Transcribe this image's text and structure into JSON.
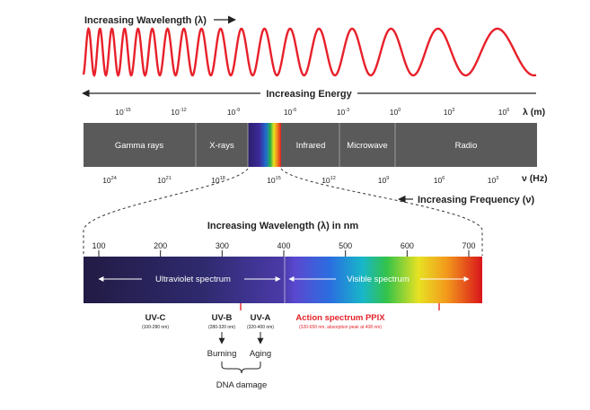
{
  "top_wavelength_label": "Increasing Wavelength (λ)",
  "energy_label": "Increasing Energy",
  "wavelength_unit": "λ (m)",
  "wavelength_ticks": [
    {
      "base": "10",
      "exp": "-15"
    },
    {
      "base": "10",
      "exp": "-12"
    },
    {
      "base": "10",
      "exp": "-9"
    },
    {
      "base": "10",
      "exp": "-6"
    },
    {
      "base": "10",
      "exp": "-3"
    },
    {
      "base": "10",
      "exp": "0"
    },
    {
      "base": "10",
      "exp": "3"
    },
    {
      "base": "10",
      "exp": "6"
    }
  ],
  "bands": [
    {
      "label": "Gamma rays"
    },
    {
      "label": "X-rays"
    },
    {
      "label": "Infrared"
    },
    {
      "label": "Microwave"
    },
    {
      "label": "Radio"
    }
  ],
  "frequency_ticks": [
    {
      "base": "10",
      "exp": "24"
    },
    {
      "base": "10",
      "exp": "21"
    },
    {
      "base": "10",
      "exp": "18"
    },
    {
      "base": "10",
      "exp": "15"
    },
    {
      "base": "10",
      "exp": "12"
    },
    {
      "base": "10",
      "exp": "9"
    },
    {
      "base": "10",
      "exp": "6"
    },
    {
      "base": "10",
      "exp": "3"
    }
  ],
  "frequency_unit": "ν (Hz)",
  "frequency_label": "Increasing Frequency (ν)",
  "nm_label": "Increasing Wavelength (λ) in nm",
  "nm_ticks": [
    "100",
    "200",
    "300",
    "400",
    "500",
    "600",
    "700"
  ],
  "uv_spectrum_label": "Ultraviolet spectrum",
  "visible_spectrum_label": "Visible spectrum",
  "uvc": {
    "title": "UV-C",
    "range": "(100-280 nm)"
  },
  "uvb": {
    "title": "UV-B",
    "range": "(280-320 nm)"
  },
  "uva": {
    "title": "UV-A",
    "range": "(320-400 nm)"
  },
  "ppix": {
    "title": "Action spectrum PPIX",
    "range": "(320-650 nm, absorption peak at 408 nm)"
  },
  "burning_label": "Burning",
  "aging_label": "Aging",
  "dna_label": "DNA damage",
  "colors": {
    "band_gray": "#5a5a5a",
    "wave_red": "#e8202a",
    "uv_dark": "#241b4a",
    "ppix_red": "#e3242b",
    "text": "#222222"
  }
}
